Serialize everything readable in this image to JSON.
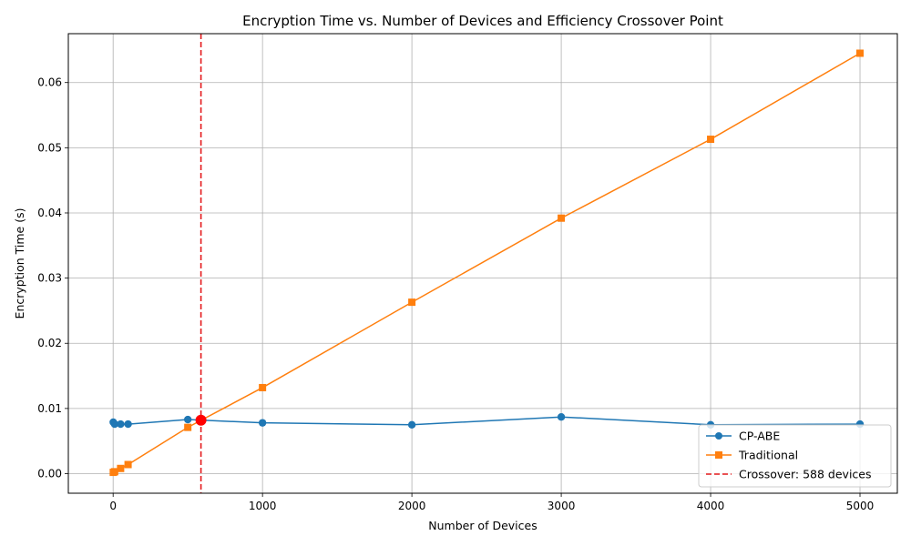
{
  "chart_data": {
    "type": "line",
    "title": "Encryption Time vs. Number of Devices and Efficiency Crossover Point",
    "xlabel": "Number of Devices",
    "ylabel": "Encryption Time (s)",
    "xlim": [
      -300,
      5250
    ],
    "ylim": [
      -0.003,
      0.0675
    ],
    "xticks": [
      0,
      1000,
      2000,
      3000,
      4000,
      5000
    ],
    "xtick_labels": [
      "0",
      "1000",
      "2000",
      "3000",
      "4000",
      "5000"
    ],
    "yticks": [
      0.0,
      0.01,
      0.02,
      0.03,
      0.04,
      0.05,
      0.06
    ],
    "ytick_labels": [
      "0.00",
      "0.01",
      "0.02",
      "0.03",
      "0.04",
      "0.05",
      "0.06"
    ],
    "grid": true,
    "legend_position": "bottom-right",
    "series": [
      {
        "name": "CP-ABE",
        "color": "#1f77b4",
        "marker": "circle",
        "x": [
          1,
          10,
          50,
          100,
          500,
          1000,
          2000,
          3000,
          4000,
          5000
        ],
        "y": [
          0.0079,
          0.0076,
          0.0076,
          0.0076,
          0.0083,
          0.0078,
          0.0075,
          0.0087,
          0.0075,
          0.0076
        ]
      },
      {
        "name": "Traditional",
        "color": "#ff7f0e",
        "marker": "square",
        "x": [
          1,
          10,
          50,
          100,
          500,
          1000,
          2000,
          3000,
          4000,
          5000
        ],
        "y": [
          0.0002,
          0.0003,
          0.0008,
          0.0014,
          0.0071,
          0.0132,
          0.0263,
          0.0392,
          0.0513,
          0.0645
        ]
      }
    ],
    "crossover": {
      "name": "Crossover: 588 devices",
      "x": 588,
      "y": 0.0082,
      "color": "#e41a1c",
      "point_color": "#ff0000"
    }
  }
}
